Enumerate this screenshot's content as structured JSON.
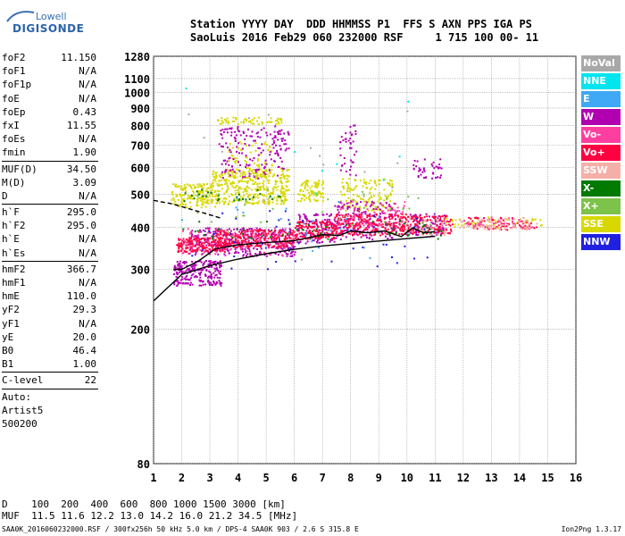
{
  "logo": {
    "line1": "Lowell",
    "line2": "DIGISONDE"
  },
  "header": {
    "row1": "Station YYYY DAY  DDD HHMMSS P1  FFS S AXN PPS IGA PS",
    "row2": "SaoLuis 2016 Feb29 060 232000 RSF     1 715 100 00- 11"
  },
  "params": [
    {
      "k": "foF2",
      "v": "11.150"
    },
    {
      "k": "foF1",
      "v": "N/A"
    },
    {
      "k": "foF1p",
      "v": "N/A"
    },
    {
      "k": "foE",
      "v": "N/A"
    },
    {
      "k": "foEp",
      "v": "0.43"
    },
    {
      "k": "fxI",
      "v": "11.55"
    },
    {
      "k": "foEs",
      "v": "N/A"
    },
    {
      "k": "fmin",
      "v": "1.90"
    },
    {
      "sep": true
    },
    {
      "k": "MUF(D)",
      "v": "34.50"
    },
    {
      "k": "M(D)",
      "v": "3.09"
    },
    {
      "k": "D",
      "v": "N/A"
    },
    {
      "sep": true
    },
    {
      "k": "h`F",
      "v": "295.0"
    },
    {
      "k": "h`F2",
      "v": "295.0"
    },
    {
      "k": "h`E",
      "v": "N/A"
    },
    {
      "k": "h`Es",
      "v": "N/A"
    },
    {
      "sep": true
    },
    {
      "k": "hmF2",
      "v": "366.7"
    },
    {
      "k": "hmF1",
      "v": "N/A"
    },
    {
      "k": "hmE",
      "v": "110.0"
    },
    {
      "k": "yF2",
      "v": "29.3"
    },
    {
      "k": "yF1",
      "v": "N/A"
    },
    {
      "k": "yE",
      "v": "20.0"
    },
    {
      "k": "B0",
      "v": "46.4"
    },
    {
      "k": "B1",
      "v": "1.00"
    },
    {
      "sep": true
    },
    {
      "k": "C-level",
      "v": "22"
    },
    {
      "sep": true
    },
    {
      "text": "Auto:"
    },
    {
      "text": "Artist5"
    },
    {
      "text": "500200"
    }
  ],
  "legend": [
    {
      "label": "NoVal",
      "color": "#a8a8a8"
    },
    {
      "label": "NNE",
      "color": "#00e5ee"
    },
    {
      "label": "E",
      "color": "#3fa9f5"
    },
    {
      "label": "W",
      "color": "#b000b0"
    },
    {
      "label": "Vo-",
      "color": "#ff3fa0"
    },
    {
      "label": "Vo+",
      "color": "#ff0040"
    },
    {
      "label": "SSW",
      "color": "#f4b0a8"
    },
    {
      "label": "X-",
      "color": "#007a00"
    },
    {
      "label": "X+",
      "color": "#7dc24a"
    },
    {
      "label": "SSE",
      "color": "#d8d800"
    },
    {
      "label": "NNW",
      "color": "#2020e0"
    }
  ],
  "bottom": {
    "row1": "D    100  200  400  600  800 1000 1500 3000 [km]",
    "row2": "MUF  11.5 11.6 12.2 13.0 14.2 16.0 21.2 34.5 [MHz]",
    "footer_left": "SAA0K_2016060232000.RSF / 300fx256h 50 kHz 5.0 km / DPS-4 SAA0K 903 / 2.6 S 315.8 E",
    "footer_right": "Ion2Png 1.3.17"
  },
  "chart_data": {
    "type": "scatter",
    "title": "",
    "xlabel": "",
    "ylabel": "",
    "xlim": [
      1,
      16
    ],
    "ylim": [
      80,
      1280
    ],
    "y_scale": "log",
    "x_ticks": [
      1,
      2,
      3,
      4,
      5,
      6,
      7,
      8,
      9,
      10,
      11,
      12,
      13,
      14,
      15,
      16
    ],
    "y_ticks": [
      80,
      200,
      300,
      400,
      500,
      600,
      700,
      800,
      900,
      1000,
      1100,
      1280
    ],
    "grid": true,
    "legend_position": "right",
    "series": [
      {
        "color": "#d8d800",
        "clusters": [
          {
            "x": [
              1.6,
              3.2
            ],
            "y": [
              460,
              540
            ],
            "n": 160
          },
          {
            "x": [
              3.0,
              5.8
            ],
            "y": [
              470,
              600
            ],
            "n": 380
          },
          {
            "x": [
              3.2,
              5.6
            ],
            "y": [
              810,
              850
            ],
            "n": 60
          },
          {
            "x": [
              3.6,
              5.2
            ],
            "y": [
              560,
              720
            ],
            "n": 80
          },
          {
            "x": [
              6.1,
              7.0
            ],
            "y": [
              480,
              560
            ],
            "n": 90
          },
          {
            "x": [
              7.6,
              9.5
            ],
            "y": [
              450,
              560
            ],
            "n": 140
          },
          {
            "x": [
              11.3,
              14.8
            ],
            "y": [
              400,
              430
            ],
            "n": 50
          }
        ]
      },
      {
        "color": "#b000b0",
        "clusters": [
          {
            "x": [
              1.7,
              3.4
            ],
            "y": [
              270,
              320
            ],
            "n": 220
          },
          {
            "x": [
              2.2,
              6.0
            ],
            "y": [
              330,
              400
            ],
            "n": 320
          },
          {
            "x": [
              3.3,
              5.6
            ],
            "y": [
              560,
              800
            ],
            "n": 140
          },
          {
            "x": [
              5.2,
              5.8
            ],
            "y": [
              650,
              780
            ],
            "n": 30
          },
          {
            "x": [
              6.0,
              7.4
            ],
            "y": [
              360,
              440
            ],
            "n": 120
          },
          {
            "x": [
              7.4,
              9.6
            ],
            "y": [
              370,
              480
            ],
            "n": 180
          },
          {
            "x": [
              7.6,
              8.2
            ],
            "y": [
              560,
              820
            ],
            "n": 40
          },
          {
            "x": [
              10.0,
              11.3
            ],
            "y": [
              380,
              440
            ],
            "n": 90
          },
          {
            "x": [
              10.2,
              11.2
            ],
            "y": [
              560,
              640
            ],
            "n": 40
          }
        ]
      },
      {
        "color": "#ff0040",
        "clusters": [
          {
            "x": [
              1.8,
              3.6
            ],
            "y": [
              340,
              375
            ],
            "n": 200
          },
          {
            "x": [
              3.2,
              6.0
            ],
            "y": [
              350,
              395
            ],
            "n": 260
          },
          {
            "x": [
              6.0,
              7.4
            ],
            "y": [
              370,
              420
            ],
            "n": 140
          },
          {
            "x": [
              7.4,
              10.0
            ],
            "y": [
              380,
              440
            ],
            "n": 240
          },
          {
            "x": [
              10.0,
              11.6
            ],
            "y": [
              385,
              435
            ],
            "n": 110
          },
          {
            "x": [
              12.1,
              14.6
            ],
            "y": [
              395,
              430
            ],
            "n": 70
          }
        ]
      },
      {
        "color": "#ff3fa0",
        "clusters": [
          {
            "x": [
              1.9,
              6.0
            ],
            "y": [
              330,
              400
            ],
            "n": 120
          },
          {
            "x": [
              7.5,
              10.0
            ],
            "y": [
              400,
              480
            ],
            "n": 80
          },
          {
            "x": [
              12.0,
              14.5
            ],
            "y": [
              400,
              425
            ],
            "n": 40
          }
        ]
      },
      {
        "color": "#f4b0a8",
        "clusters": [
          {
            "x": [
              11.8,
              14.6
            ],
            "y": [
              395,
              430
            ],
            "n": 70
          },
          {
            "x": [
              9.9,
              11.4
            ],
            "y": [
              380,
              430
            ],
            "n": 40
          }
        ]
      },
      {
        "color": "#007a00",
        "clusters": [
          {
            "x": [
              1.8,
              11.4
            ],
            "y": [
              370,
              420
            ],
            "n": 60
          },
          {
            "x": [
              2.0,
              5.5
            ],
            "y": [
              480,
              520
            ],
            "n": 30
          }
        ]
      },
      {
        "color": "#7dc24a",
        "clusters": [
          {
            "x": [
              2.5,
              11.0
            ],
            "y": [
              380,
              520
            ],
            "n": 40
          }
        ]
      },
      {
        "color": "#2020e0",
        "clusters": [
          {
            "x": [
              1.8,
              11.0
            ],
            "y": [
              300,
              460
            ],
            "n": 45
          }
        ]
      },
      {
        "color": "#3fa9f5",
        "clusters": [
          {
            "x": [
              1.9,
              10.5
            ],
            "y": [
              320,
              500
            ],
            "n": 25
          }
        ]
      },
      {
        "color": "#00e5ee",
        "clusters": [
          {
            "x": [
              2.0,
              12.8
            ],
            "y": [
              380,
              1110
            ],
            "n": 8
          }
        ]
      },
      {
        "color": "#a8a8a8",
        "clusters": [
          {
            "x": [
              1.8,
              10.0
            ],
            "y": [
              300,
              900
            ],
            "n": 15
          }
        ]
      }
    ],
    "traces": [
      {
        "name": "",
        "color": "#000000",
        "dash": "solid",
        "x": [
          1.0,
          2.0,
          3.0,
          4.0,
          5.0,
          6.0,
          7.0,
          8.0,
          9.0,
          10.0,
          11.0
        ],
        "y": [
          242,
          290,
          308,
          322,
          334,
          344,
          352,
          358,
          364,
          370,
          376
        ]
      },
      {
        "name": "",
        "color": "#000000",
        "dash": "solid",
        "x": [
          1.7,
          2.0,
          2.6,
          3.2,
          4.0,
          5.0,
          6.0,
          7.0,
          7.6,
          8.0,
          8.6,
          9.2,
          9.8,
          10.2,
          10.6,
          11.0
        ],
        "y": [
          300,
          300,
          318,
          345,
          355,
          360,
          365,
          380,
          378,
          390,
          385,
          390,
          375,
          398,
          385,
          388
        ]
      },
      {
        "name": "",
        "color": "#000000",
        "dash": "dashed",
        "x": [
          1.0,
          1.6,
          2.2,
          2.8,
          3.4
        ],
        "y": [
          480,
          470,
          455,
          440,
          425
        ]
      }
    ]
  }
}
